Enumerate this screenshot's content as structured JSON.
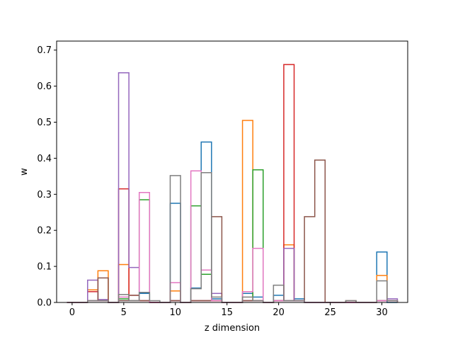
{
  "chart_data": {
    "type": "bar",
    "style": "step-outline",
    "xlabel": "z dimension",
    "ylabel": "w",
    "xlim": [
      -1.5,
      32.5
    ],
    "ylim": [
      0,
      0.725
    ],
    "xticks": [
      0,
      5,
      10,
      15,
      20,
      25,
      30
    ],
    "yticks": [
      0.0,
      0.1,
      0.2,
      0.3,
      0.4,
      0.5,
      0.6,
      0.7
    ],
    "grid": false,
    "legend": "none",
    "bin_width": 1,
    "series": [
      {
        "color": "#1f77b4",
        "values": [
          0,
          0,
          0.03,
          0.005,
          0,
          0.005,
          0.005,
          0.025,
          0,
          0,
          0.275,
          0,
          0.04,
          0.445,
          0.01,
          0,
          0,
          0.025,
          0.015,
          0,
          0.02,
          0.005,
          0.01,
          0,
          0,
          0,
          0,
          0,
          0,
          0,
          0.14,
          0
        ]
      },
      {
        "color": "#ff7f0e",
        "values": [
          0,
          0,
          0.035,
          0.088,
          0,
          0.105,
          0.005,
          0.005,
          0,
          0,
          0.032,
          0,
          0.005,
          0.005,
          0.005,
          0,
          0,
          0.505,
          0.005,
          0,
          0.005,
          0.16,
          0.005,
          0,
          0,
          0,
          0,
          0,
          0,
          0,
          0.075,
          0.005
        ]
      },
      {
        "color": "#2ca02c",
        "values": [
          0,
          0,
          0.005,
          0.005,
          0,
          0.01,
          0.005,
          0.285,
          0,
          0,
          0.005,
          0,
          0.268,
          0.078,
          0.005,
          0,
          0,
          0.005,
          0.368,
          0,
          0.005,
          0.005,
          0.005,
          0,
          0,
          0,
          0,
          0,
          0,
          0,
          0.005,
          0.005
        ]
      },
      {
        "color": "#d62728",
        "values": [
          0,
          0,
          0.03,
          0.005,
          0,
          0.315,
          0.02,
          0.005,
          0,
          0,
          0.005,
          0,
          0.005,
          0.005,
          0.005,
          0,
          0,
          0.005,
          0.005,
          0,
          0.005,
          0.66,
          0.005,
          0,
          0,
          0,
          0,
          0,
          0,
          0,
          0.005,
          0.005
        ]
      },
      {
        "color": "#9467bd",
        "values": [
          0,
          0,
          0.062,
          0.008,
          0,
          0.637,
          0.097,
          0.005,
          0,
          0,
          0.005,
          0,
          0.005,
          0.005,
          0.025,
          0,
          0,
          0.005,
          0.005,
          0,
          0.005,
          0.15,
          0.005,
          0,
          0,
          0,
          0,
          0,
          0,
          0,
          0.005,
          0.01
        ]
      },
      {
        "color": "#8c564b",
        "values": [
          0,
          0,
          0.005,
          0.068,
          0,
          0.005,
          0.02,
          0.005,
          0,
          0,
          0.005,
          0,
          0.005,
          0.005,
          0.238,
          0,
          0,
          0.005,
          0.005,
          0,
          0.005,
          0.005,
          0.005,
          0.238,
          0.395,
          0,
          0,
          0.005,
          0,
          0,
          0.005,
          0.005
        ]
      },
      {
        "color": "#e377c2",
        "values": [
          0,
          0,
          0.005,
          0.005,
          0,
          0.015,
          0.005,
          0.305,
          0,
          0,
          0.055,
          0,
          0.365,
          0.09,
          0.005,
          0,
          0,
          0.03,
          0.15,
          0,
          0.005,
          0.005,
          0.005,
          0,
          0,
          0,
          0,
          0,
          0,
          0,
          0.005,
          0.005
        ]
      },
      {
        "color": "#7f7f7f",
        "values": [
          0,
          0,
          0.005,
          0.005,
          0,
          0.022,
          0.005,
          0.028,
          0.005,
          0,
          0.352,
          0,
          0.038,
          0.36,
          0.015,
          0,
          0,
          0.015,
          0.005,
          0,
          0.048,
          0.005,
          0.005,
          0,
          0,
          0,
          0,
          0.005,
          0,
          0,
          0.06,
          0.005
        ]
      }
    ]
  }
}
